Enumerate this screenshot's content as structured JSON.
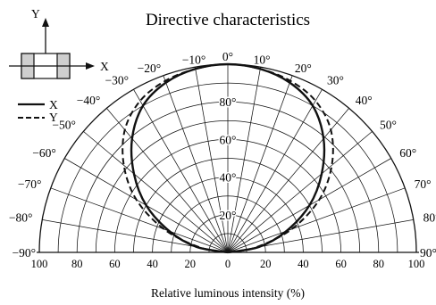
{
  "chart_data": {
    "type": "polar",
    "title": "Directive characteristics",
    "xlabel": "Relative luminous intensity  (%)",
    "angle_unit": "°",
    "radial_range": [
      0,
      100
    ],
    "angle_range": [
      -90,
      90
    ],
    "grid": true,
    "angle_ticks": [
      {
        "value": -90,
        "label": "−90°"
      },
      {
        "value": -80,
        "label": "−80°"
      },
      {
        "value": -70,
        "label": "−70°"
      },
      {
        "value": -60,
        "label": "−60°"
      },
      {
        "value": -50,
        "label": "−50°"
      },
      {
        "value": -40,
        "label": "−40°"
      },
      {
        "value": -30,
        "label": "−30°"
      },
      {
        "value": -20,
        "label": "−20°"
      },
      {
        "value": -10,
        "label": "−10°"
      },
      {
        "value": 0,
        "label": "0°"
      },
      {
        "value": 10,
        "label": "10°"
      },
      {
        "value": 20,
        "label": "20°"
      },
      {
        "value": 30,
        "label": "30°"
      },
      {
        "value": 40,
        "label": "40°"
      },
      {
        "value": 50,
        "label": "50°"
      },
      {
        "value": 60,
        "label": "60°"
      },
      {
        "value": 70,
        "label": "70°"
      },
      {
        "value": 80,
        "label": "80°"
      },
      {
        "value": 90,
        "label": "90°"
      }
    ],
    "radial_ticks": [
      {
        "value": 20,
        "label": "20"
      },
      {
        "value": 40,
        "label": "40"
      },
      {
        "value": 60,
        "label": "60"
      },
      {
        "value": 80,
        "label": "80"
      }
    ],
    "x_ticks": [
      {
        "value": -100,
        "label": "100"
      },
      {
        "value": -80,
        "label": "80"
      },
      {
        "value": -60,
        "label": "60"
      },
      {
        "value": -40,
        "label": "40"
      },
      {
        "value": -20,
        "label": "20"
      },
      {
        "value": 0,
        "label": "0"
      },
      {
        "value": 20,
        "label": "20"
      },
      {
        "value": 40,
        "label": "40"
      },
      {
        "value": 60,
        "label": "60"
      },
      {
        "value": 80,
        "label": "80"
      },
      {
        "value": 100,
        "label": "100"
      }
    ],
    "series": [
      {
        "name": "X",
        "style": "solid",
        "angles": [
          -90,
          -80,
          -70,
          -60,
          -50,
          -40,
          -30,
          -20,
          -10,
          0,
          10,
          20,
          30,
          40,
          50,
          60,
          70,
          80,
          90
        ],
        "values": [
          0,
          17,
          33,
          50,
          65,
          79,
          90,
          96,
          99,
          100,
          99,
          96,
          90,
          79,
          65,
          50,
          33,
          17,
          0
        ]
      },
      {
        "name": "Y",
        "style": "dashed",
        "angles": [
          -90,
          -80,
          -70,
          -60,
          -50,
          -40,
          -30,
          -20,
          -10,
          0,
          10,
          20,
          30,
          40,
          50,
          60,
          70,
          80,
          90
        ],
        "values": [
          0,
          15,
          36,
          56,
          72,
          85,
          93,
          97,
          99,
          100,
          99,
          97,
          93,
          85,
          72,
          56,
          36,
          15,
          0
        ]
      }
    ]
  },
  "inset": {
    "axis_y_label": "Y",
    "axis_x_label": "X"
  }
}
